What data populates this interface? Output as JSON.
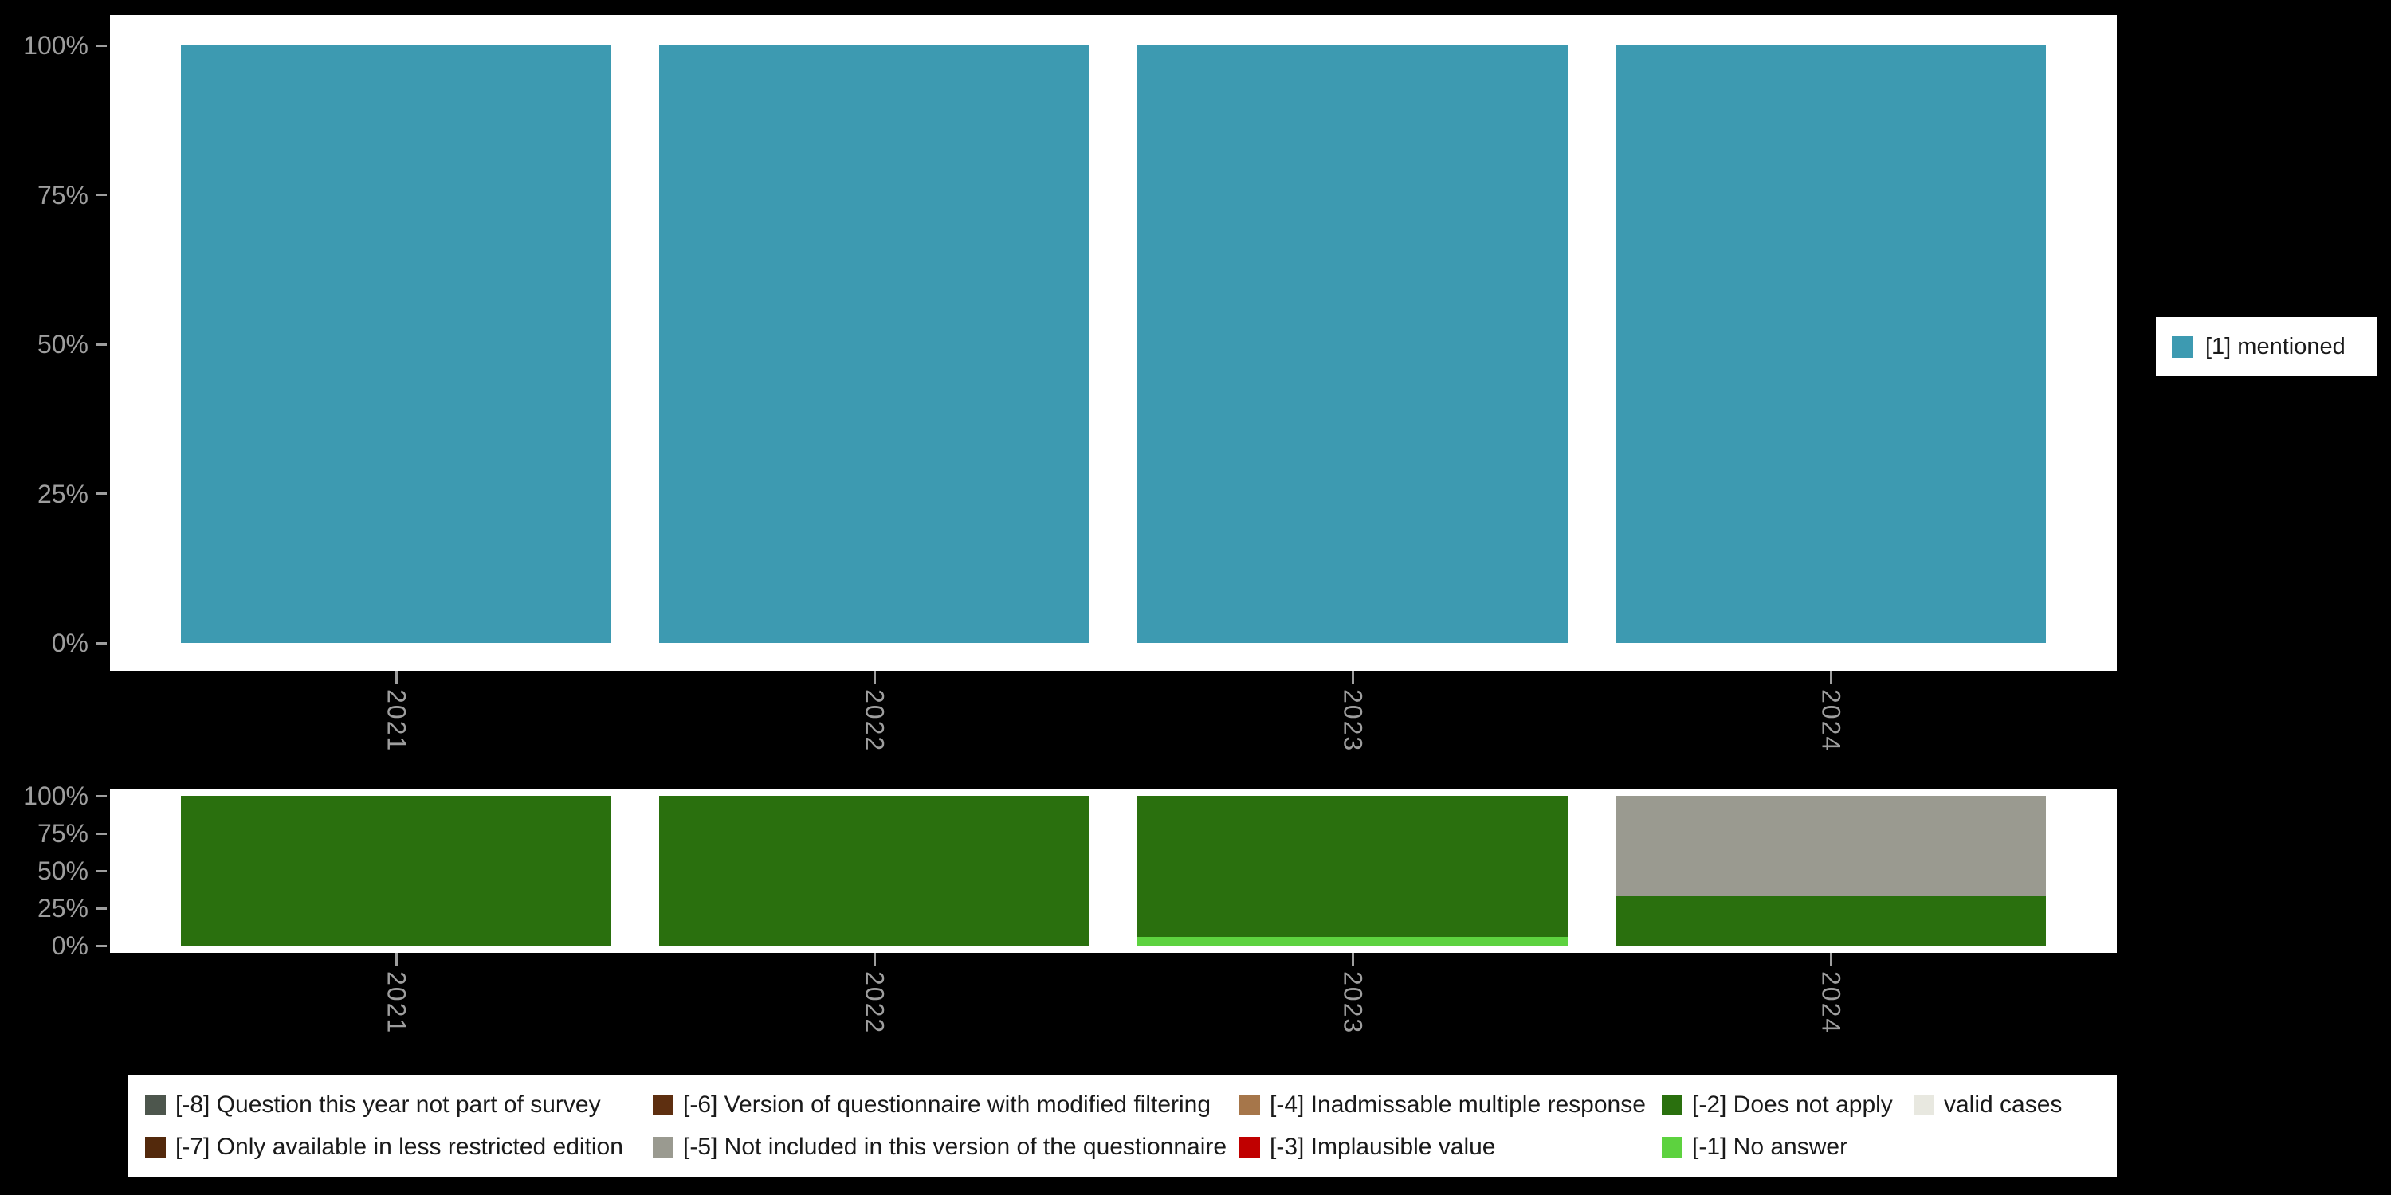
{
  "colors": {
    "background": "#000000",
    "panel_bg": "#ffffff",
    "axis_text": "#9e9e9e",
    "tick": "#9e9e9e",
    "legend_bg": "#ffffff",
    "legend_text": "#1a1a1a"
  },
  "chart_data": [
    {
      "id": "mentioned-by-year",
      "type": "bar",
      "title": "",
      "categories": [
        "2021",
        "2022",
        "2023",
        "2024"
      ],
      "y_ticks": [
        "100%",
        "75%",
        "50%",
        "25%",
        "0%"
      ],
      "ylim": [
        0,
        100
      ],
      "grid": false,
      "legend_position": "right",
      "series": [
        {
          "name": "[1] mentioned",
          "color": "#3d9ab1",
          "values": [
            100,
            100,
            100,
            100
          ]
        }
      ]
    },
    {
      "id": "missing-values-by-year",
      "type": "stacked-bar",
      "title": "",
      "categories": [
        "2021",
        "2022",
        "2023",
        "2024"
      ],
      "y_ticks": [
        "100%",
        "75%",
        "50%",
        "25%",
        "0%"
      ],
      "ylim": [
        0,
        100
      ],
      "grid": false,
      "legend_position": "bottom",
      "series": [
        {
          "name": "[-5] Not included in this version of the questionnaire",
          "color": "#9a9a90",
          "values": [
            0,
            0,
            0,
            67
          ]
        },
        {
          "name": "[-2] Does not apply",
          "color": "#2a700e",
          "values": [
            100,
            100,
            94,
            33
          ]
        },
        {
          "name": "[-1] No answer",
          "color": "#5dd23f",
          "values": [
            0,
            0,
            6,
            0
          ]
        }
      ]
    }
  ],
  "top_legend": {
    "items": [
      {
        "label": "[1] mentioned",
        "color": "#3d9ab1"
      }
    ]
  },
  "bottom_legend": {
    "col_offsets": [
      21,
      658,
      1394,
      1924,
      2240
    ],
    "row_offsets": [
      19,
      72
    ],
    "items": [
      {
        "label": "[-8] Question this year not part of survey",
        "color": "#4d564d",
        "row": 0,
        "col": 0
      },
      {
        "label": "[-7] Only available in less restricted edition",
        "color": "#53290c",
        "row": 1,
        "col": 0
      },
      {
        "label": "[-6] Version of questionnaire with modified filtering",
        "color": "#5e2f10",
        "row": 0,
        "col": 1
      },
      {
        "label": "[-5] Not included in this version of the questionnaire",
        "color": "#9a9a90",
        "row": 1,
        "col": 1
      },
      {
        "label": "[-4] Inadmissable multiple response",
        "color": "#a6764a",
        "row": 0,
        "col": 2
      },
      {
        "label": "[-3] Implausible value",
        "color": "#c00000",
        "row": 1,
        "col": 2
      },
      {
        "label": "[-2] Does not apply",
        "color": "#2a700e",
        "row": 0,
        "col": 3
      },
      {
        "label": "[-1] No answer",
        "color": "#5dd23f",
        "row": 1,
        "col": 3
      },
      {
        "label": "valid cases",
        "color": "#e8e8e0",
        "row": 0,
        "col": 4
      }
    ]
  }
}
